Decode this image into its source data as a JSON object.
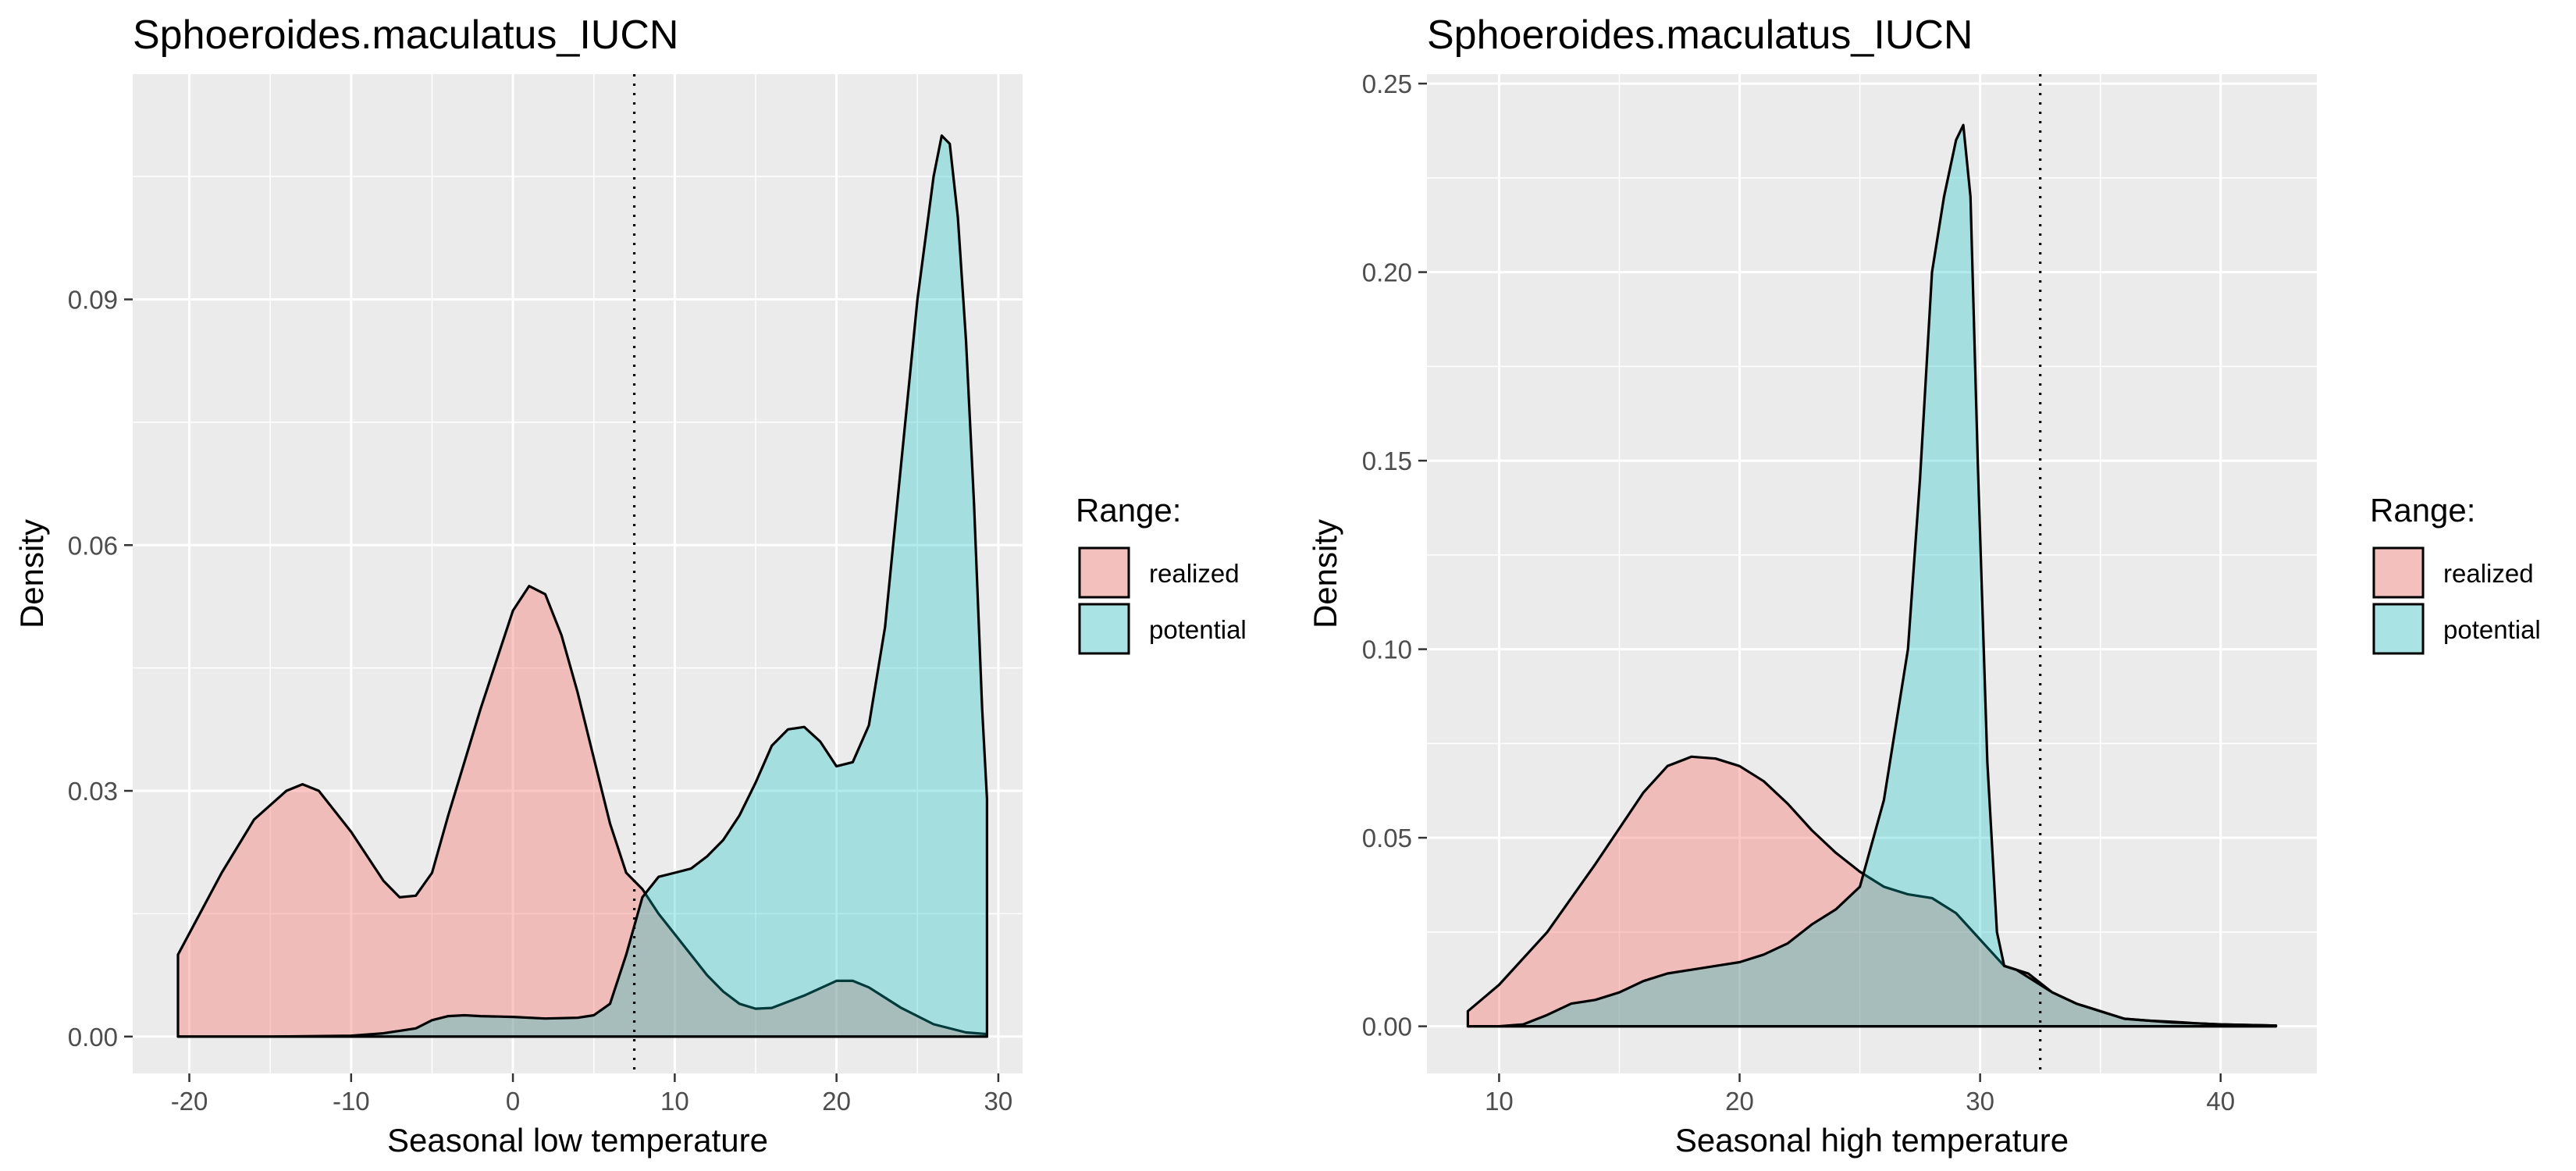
{
  "chart_data": [
    {
      "type": "area",
      "title": "Sphoeroides.maculatus_IUCN",
      "xlabel": "Seasonal low temperature",
      "ylabel": "Density",
      "xlim": [
        -23.5,
        31.5
      ],
      "ylim": [
        -0.0045,
        0.1175
      ],
      "xticks": [
        "-20",
        "-10",
        "0",
        "10",
        "20",
        "30"
      ],
      "xtick_values": [
        -20,
        -10,
        0,
        10,
        20,
        30
      ],
      "yticks": [
        "0.00",
        "0.03",
        "0.06",
        "0.09"
      ],
      "ytick_values": [
        0,
        0.03,
        0.06,
        0.09
      ],
      "grid": true,
      "vline": 7.5,
      "legend": {
        "title": "Range:",
        "position": "right"
      },
      "series": [
        {
          "name": "realized",
          "color": "#F8766D",
          "x": [
            -20.7,
            -18,
            -16,
            -14,
            -13,
            -12,
            -10,
            -8,
            -7,
            -6,
            -5,
            -4,
            -2,
            0,
            1,
            2,
            3,
            4,
            5,
            6,
            7,
            8,
            9,
            10,
            11,
            12,
            13,
            14,
            15,
            16,
            18,
            20,
            21,
            22,
            24,
            26,
            28,
            29.3
          ],
          "y": [
            0.01,
            0.02,
            0.0265,
            0.03,
            0.0308,
            0.03,
            0.025,
            0.019,
            0.017,
            0.0172,
            0.02,
            0.027,
            0.04,
            0.052,
            0.055,
            0.054,
            0.049,
            0.042,
            0.034,
            0.026,
            0.02,
            0.018,
            0.015,
            0.0125,
            0.01,
            0.0075,
            0.0055,
            0.004,
            0.0034,
            0.0035,
            0.005,
            0.0068,
            0.0068,
            0.006,
            0.0035,
            0.0015,
            0.0005,
            0.0003
          ]
        },
        {
          "name": "potential",
          "color": "#00BFC4",
          "x": [
            -20.7,
            -15,
            -10,
            -8,
            -6,
            -5,
            -4,
            -3,
            -2,
            0,
            2,
            4,
            5,
            6,
            7,
            8,
            9,
            10,
            11,
            12,
            13,
            14,
            15,
            16,
            17,
            18,
            19,
            20,
            21,
            22,
            23,
            24,
            25,
            26,
            26.5,
            27,
            27.5,
            28,
            28.5,
            29,
            29.3
          ],
          "y": [
            0,
            0,
            0.0001,
            0.0004,
            0.001,
            0.002,
            0.0025,
            0.0026,
            0.0025,
            0.0024,
            0.0022,
            0.0023,
            0.0026,
            0.004,
            0.01,
            0.017,
            0.0195,
            0.02,
            0.0205,
            0.022,
            0.024,
            0.027,
            0.031,
            0.0355,
            0.0375,
            0.0378,
            0.036,
            0.033,
            0.0335,
            0.038,
            0.05,
            0.07,
            0.09,
            0.105,
            0.11,
            0.109,
            0.1,
            0.085,
            0.065,
            0.04,
            0.029
          ]
        }
      ]
    },
    {
      "type": "area",
      "title": "Sphoeroides.maculatus_IUCN",
      "xlabel": "Seasonal high temperature",
      "ylabel": "Density",
      "xlim": [
        7.0,
        44.0
      ],
      "ylim": [
        -0.0125,
        0.2525
      ],
      "xticks": [
        "10",
        "20",
        "30",
        "40"
      ],
      "xtick_values": [
        10,
        20,
        30,
        40
      ],
      "yticks": [
        "0.00",
        "0.05",
        "0.10",
        "0.15",
        "0.20",
        "0.25"
      ],
      "ytick_values": [
        0,
        0.05,
        0.1,
        0.15,
        0.2,
        0.25
      ],
      "grid": true,
      "vline": 32.5,
      "legend": {
        "title": "Range:",
        "position": "right"
      },
      "series": [
        {
          "name": "realized",
          "color": "#F8766D",
          "x": [
            8.7,
            10,
            12,
            14,
            16,
            17,
            18,
            19,
            20,
            21,
            22,
            23,
            24,
            25,
            26,
            27,
            28,
            29,
            30,
            31,
            32,
            33,
            34,
            35,
            36,
            37,
            38,
            39,
            40,
            42.3
          ],
          "y": [
            0.004,
            0.011,
            0.025,
            0.043,
            0.062,
            0.069,
            0.0715,
            0.071,
            0.069,
            0.065,
            0.059,
            0.052,
            0.046,
            0.041,
            0.037,
            0.035,
            0.034,
            0.03,
            0.023,
            0.016,
            0.014,
            0.009,
            0.006,
            0.004,
            0.002,
            0.0015,
            0.0012,
            0.0008,
            0.0005,
            0.0002
          ]
        },
        {
          "name": "potential",
          "color": "#00BFC4",
          "x": [
            8.7,
            10,
            11,
            12,
            13,
            14,
            15,
            16,
            17,
            18,
            19,
            20,
            21,
            22,
            23,
            24,
            25,
            26,
            27,
            27.5,
            28,
            28.5,
            29,
            29.3,
            29.6,
            29.9,
            30.3,
            30.7,
            31,
            31.5,
            32,
            33,
            34,
            35,
            36,
            37,
            38,
            39,
            40,
            42.3
          ],
          "y": [
            0,
            0,
            0.0005,
            0.003,
            0.006,
            0.007,
            0.009,
            0.012,
            0.014,
            0.015,
            0.016,
            0.017,
            0.019,
            0.022,
            0.027,
            0.031,
            0.037,
            0.06,
            0.1,
            0.145,
            0.2,
            0.22,
            0.235,
            0.239,
            0.22,
            0.15,
            0.07,
            0.025,
            0.016,
            0.015,
            0.013,
            0.009,
            0.006,
            0.004,
            0.002,
            0.0015,
            0.001,
            0.0008,
            0.0005,
            0.0002
          ]
        }
      ]
    }
  ]
}
